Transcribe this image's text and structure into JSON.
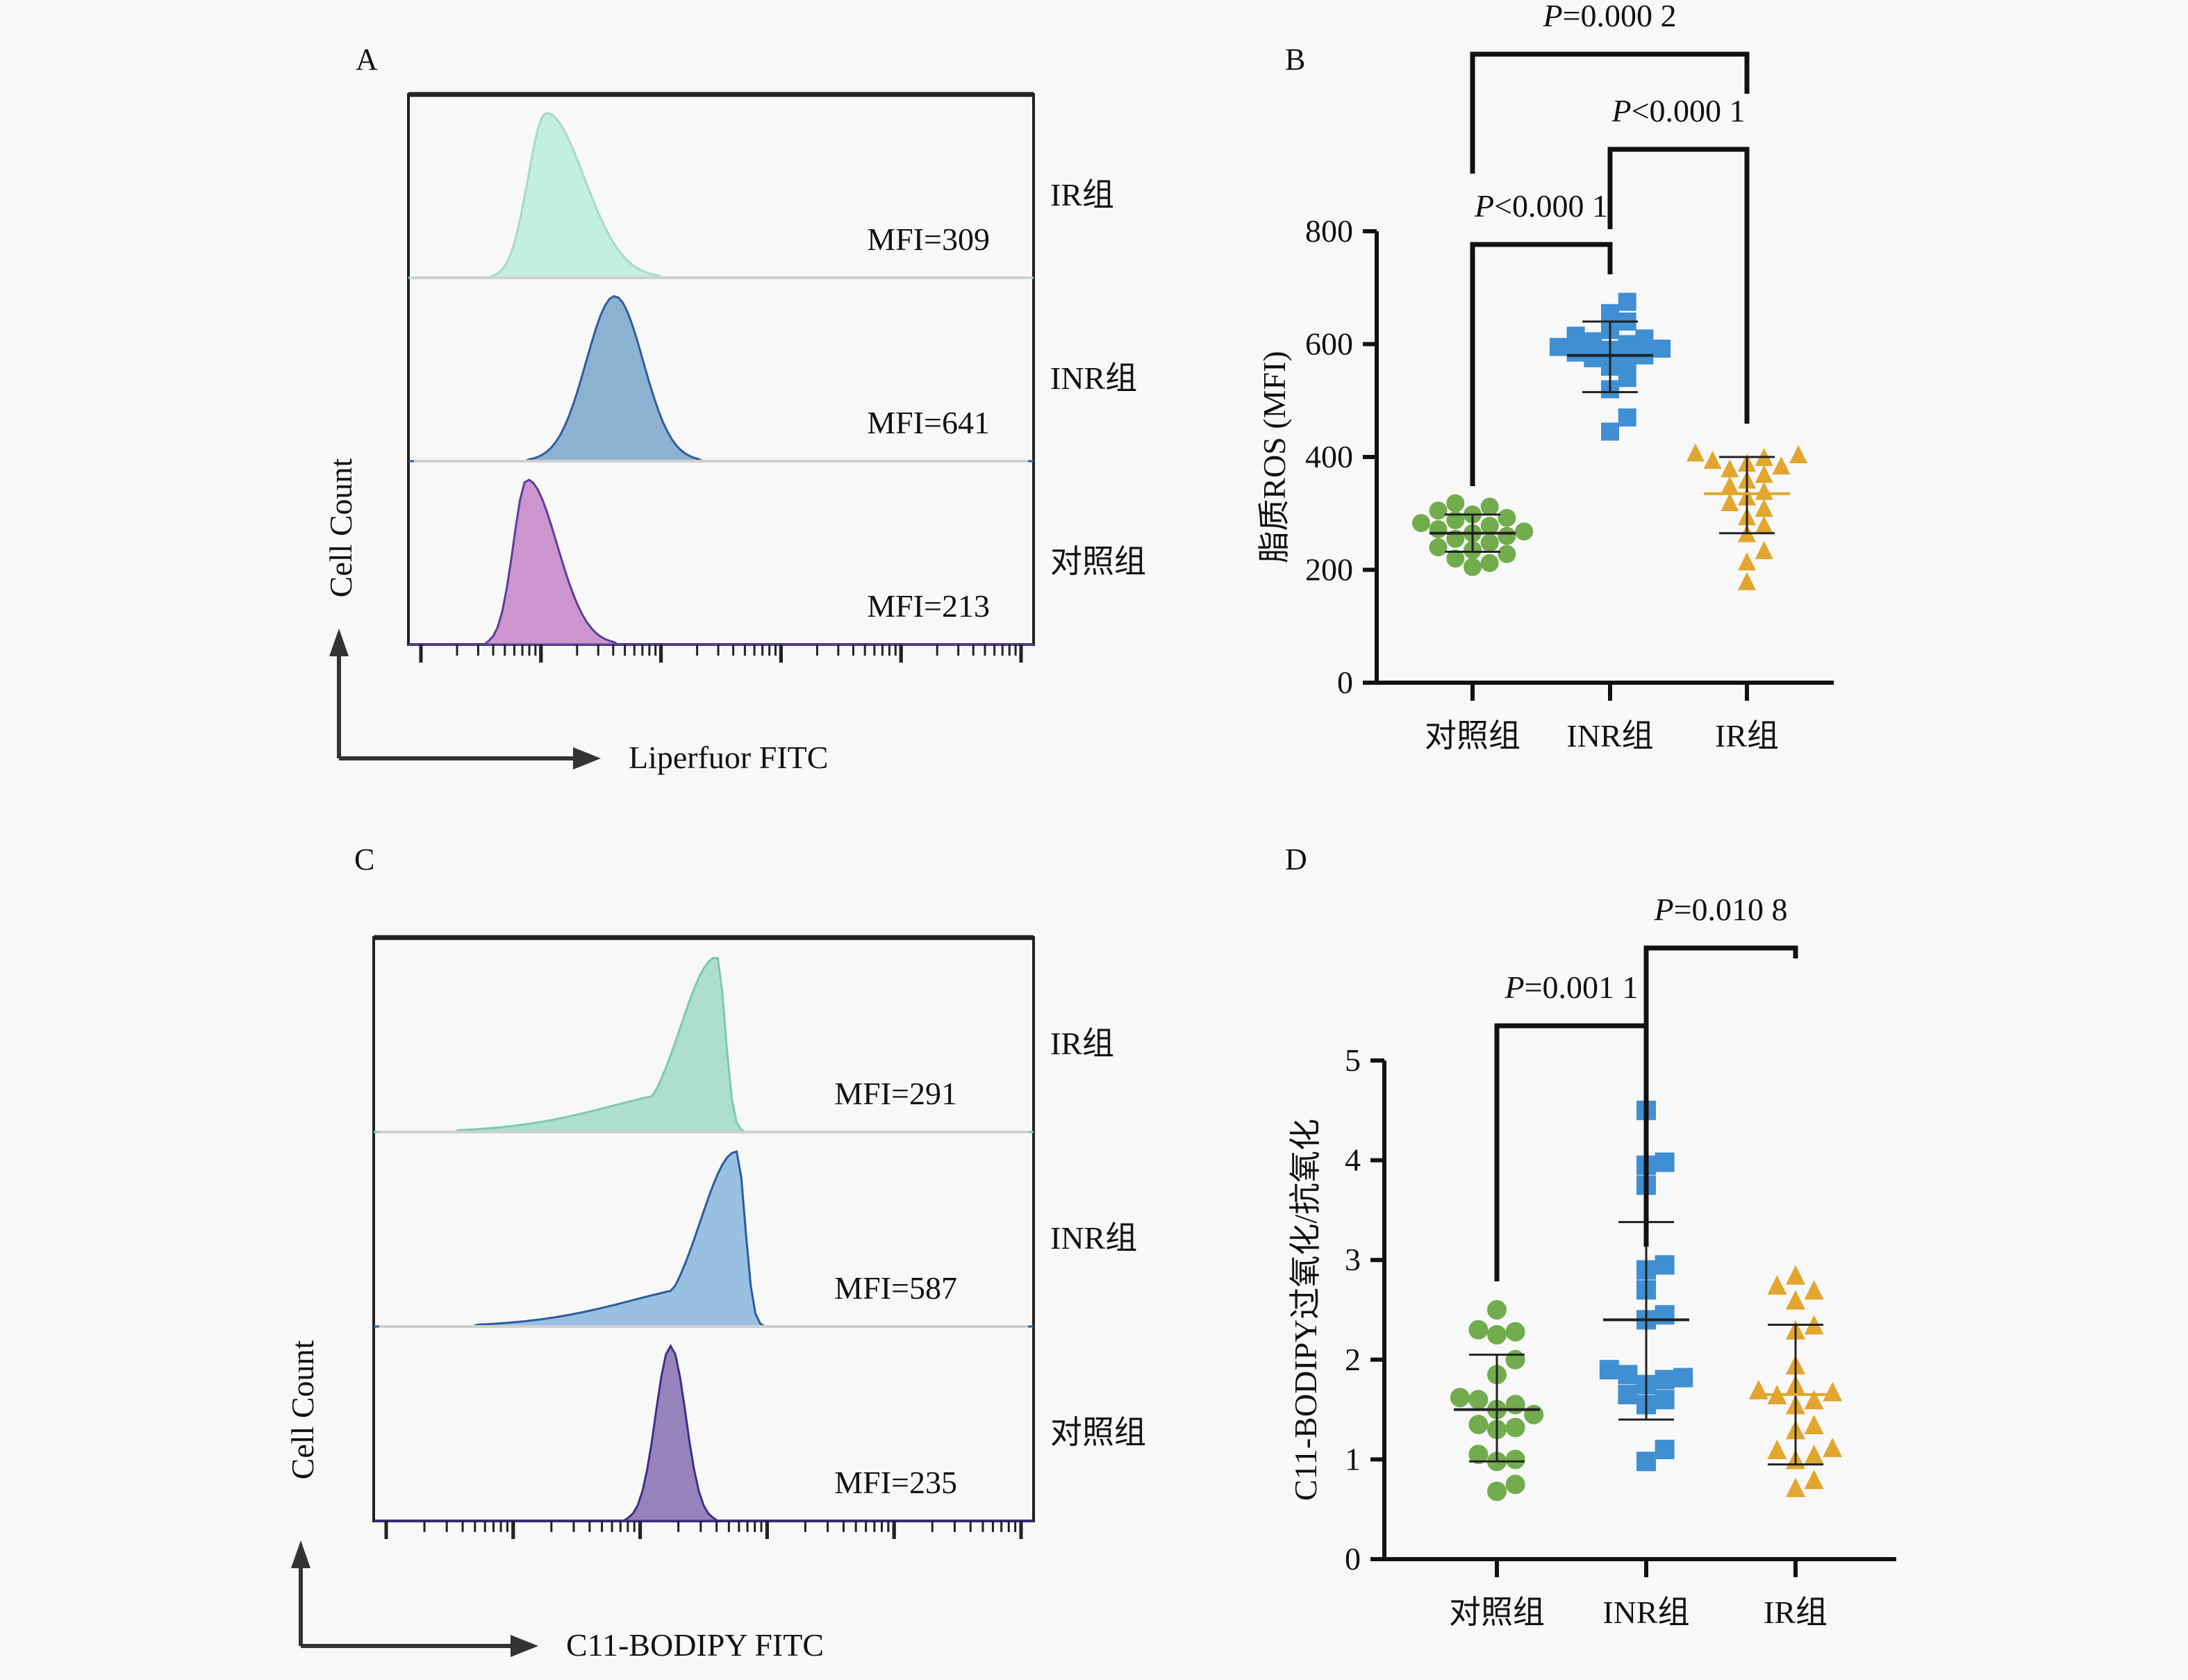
{
  "panels": {
    "A": {
      "letter": "A"
    },
    "B": {
      "letter": "B"
    },
    "C": {
      "letter": "C"
    },
    "D": {
      "letter": "D"
    }
  },
  "chart_data": [
    {
      "id": "A",
      "type": "area",
      "title": "",
      "xlabel": "Liperfuor FITC",
      "ylabel": "Cell Count",
      "x_scale": "log",
      "tracks": [
        {
          "group": "IR组",
          "mfi_label": "MFI=309",
          "mfi": 309,
          "color": "#bfeedd",
          "stroke": "#aad8c8",
          "peak_pos": 0.22,
          "width": 0.09,
          "skew": "right-tail"
        },
        {
          "group": "INR组",
          "mfi_label": "MFI=641",
          "mfi": 641,
          "color": "#86aed0",
          "stroke": "#2f5d99",
          "peak_pos": 0.33,
          "width": 0.1,
          "skew": "symmetric"
        },
        {
          "group": "对照组",
          "mfi_label": "MFI=213",
          "mfi": 213,
          "color": "#c98fcd",
          "stroke": "#5a3f9a",
          "peak_pos": 0.19,
          "width": 0.07,
          "skew": "right-tail"
        }
      ]
    },
    {
      "id": "B",
      "type": "scatter",
      "title": "",
      "xlabel": "",
      "ylabel": "脂质ROS (MFI)",
      "categories": [
        "对照组",
        "INR组",
        "IR组"
      ],
      "ylim": [
        0,
        800
      ],
      "yticks": [
        0,
        200,
        400,
        600,
        800
      ],
      "series": [
        {
          "name": "对照组",
          "marker": "circle",
          "color": "#72ac4d",
          "values": [
            205,
            212,
            220,
            228,
            235,
            240,
            248,
            255,
            260,
            265,
            268,
            272,
            278,
            283,
            288,
            292,
            298,
            305,
            312,
            318
          ],
          "mean": 265,
          "sd_low": 232,
          "sd_high": 298
        },
        {
          "name": "INR组",
          "marker": "square",
          "color": "#3f8fd2",
          "values": [
            445,
            470,
            520,
            540,
            560,
            570,
            575,
            580,
            585,
            590,
            592,
            595,
            600,
            605,
            610,
            615,
            625,
            640,
            655,
            675
          ],
          "mean": 580,
          "sd_low": 515,
          "sd_high": 640
        },
        {
          "name": "IR组",
          "marker": "triangle",
          "color": "#e2a52e",
          "values": [
            180,
            215,
            235,
            265,
            280,
            295,
            310,
            320,
            330,
            340,
            350,
            360,
            370,
            380,
            385,
            390,
            395,
            400,
            405,
            408
          ],
          "mean": 335,
          "sd_low": 265,
          "sd_high": 400
        }
      ],
      "annotations": [
        {
          "text_prefix": "P",
          "text_rest": "<0.000 1",
          "from": "对照组",
          "to": "INR组",
          "level": 1
        },
        {
          "text_prefix": "P",
          "text_rest": "<0.000 1",
          "from": "INR组",
          "to": "IR组",
          "level": 2
        },
        {
          "text_prefix": "P",
          "text_rest": "=0.000 2",
          "from": "对照组",
          "to": "IR组",
          "level": 3
        }
      ]
    },
    {
      "id": "C",
      "type": "area",
      "title": "",
      "xlabel": "C11-BODIPY FITC",
      "ylabel": "Cell Count",
      "x_scale": "log",
      "tracks": [
        {
          "group": "IR组",
          "mfi_label": "MFI=291",
          "mfi": 291,
          "color": "#aadcc9",
          "stroke": "#7ccab0",
          "peak_pos": 0.52,
          "width": 0.05,
          "skew": "left-tail"
        },
        {
          "group": "INR组",
          "mfi_label": "MFI=587",
          "mfi": 587,
          "color": "#94bde0",
          "stroke": "#2a5d9a",
          "peak_pos": 0.55,
          "width": 0.05,
          "skew": "left-tail"
        },
        {
          "group": "对照组",
          "mfi_label": "MFI=235",
          "mfi": 235,
          "color": "#8f7cb8",
          "stroke": "#3f2f8a",
          "peak_pos": 0.45,
          "width": 0.05,
          "skew": "symmetric"
        }
      ]
    },
    {
      "id": "D",
      "type": "scatter",
      "title": "",
      "xlabel": "",
      "ylabel": "C11-BODIPY过氧化/抗氧化",
      "categories": [
        "对照组",
        "INR组",
        "IR组"
      ],
      "ylim": [
        0,
        5
      ],
      "yticks": [
        0,
        1,
        2,
        3,
        4,
        5
      ],
      "series": [
        {
          "name": "对照组",
          "marker": "circle",
          "color": "#72ac4d",
          "values": [
            0.68,
            0.75,
            0.98,
            1.0,
            1.05,
            1.3,
            1.32,
            1.35,
            1.45,
            1.5,
            1.55,
            1.6,
            1.62,
            1.85,
            2.0,
            2.25,
            2.28,
            2.3,
            2.5
          ],
          "mean": 1.5,
          "sd_low": 0.98,
          "sd_high": 2.05
        },
        {
          "name": "INR组",
          "marker": "square",
          "color": "#3f8fd2",
          "values": [
            0.98,
            1.1,
            1.55,
            1.6,
            1.65,
            1.75,
            1.8,
            1.82,
            1.85,
            1.9,
            2.4,
            2.45,
            2.7,
            2.9,
            2.95,
            3.75,
            3.95,
            3.98,
            4.5
          ],
          "mean": 2.4,
          "sd_low": 1.4,
          "sd_high": 3.38
        },
        {
          "name": "IR组",
          "marker": "triangle",
          "color": "#e2a52e",
          "values": [
            0.72,
            0.8,
            1.0,
            1.05,
            1.1,
            1.12,
            1.3,
            1.35,
            1.55,
            1.6,
            1.65,
            1.68,
            1.7,
            1.75,
            1.95,
            2.3,
            2.35,
            2.6,
            2.7,
            2.75,
            2.85
          ],
          "mean": 1.65,
          "sd_low": 0.95,
          "sd_high": 2.35
        }
      ],
      "annotations": [
        {
          "text_prefix": "P",
          "text_rest": "=0.001 1",
          "from": "对照组",
          "to": "INR组",
          "level": 1
        },
        {
          "text_prefix": "P",
          "text_rest": "=0.010 8",
          "from": "INR组",
          "to": "IR组",
          "level": 2
        }
      ]
    }
  ]
}
